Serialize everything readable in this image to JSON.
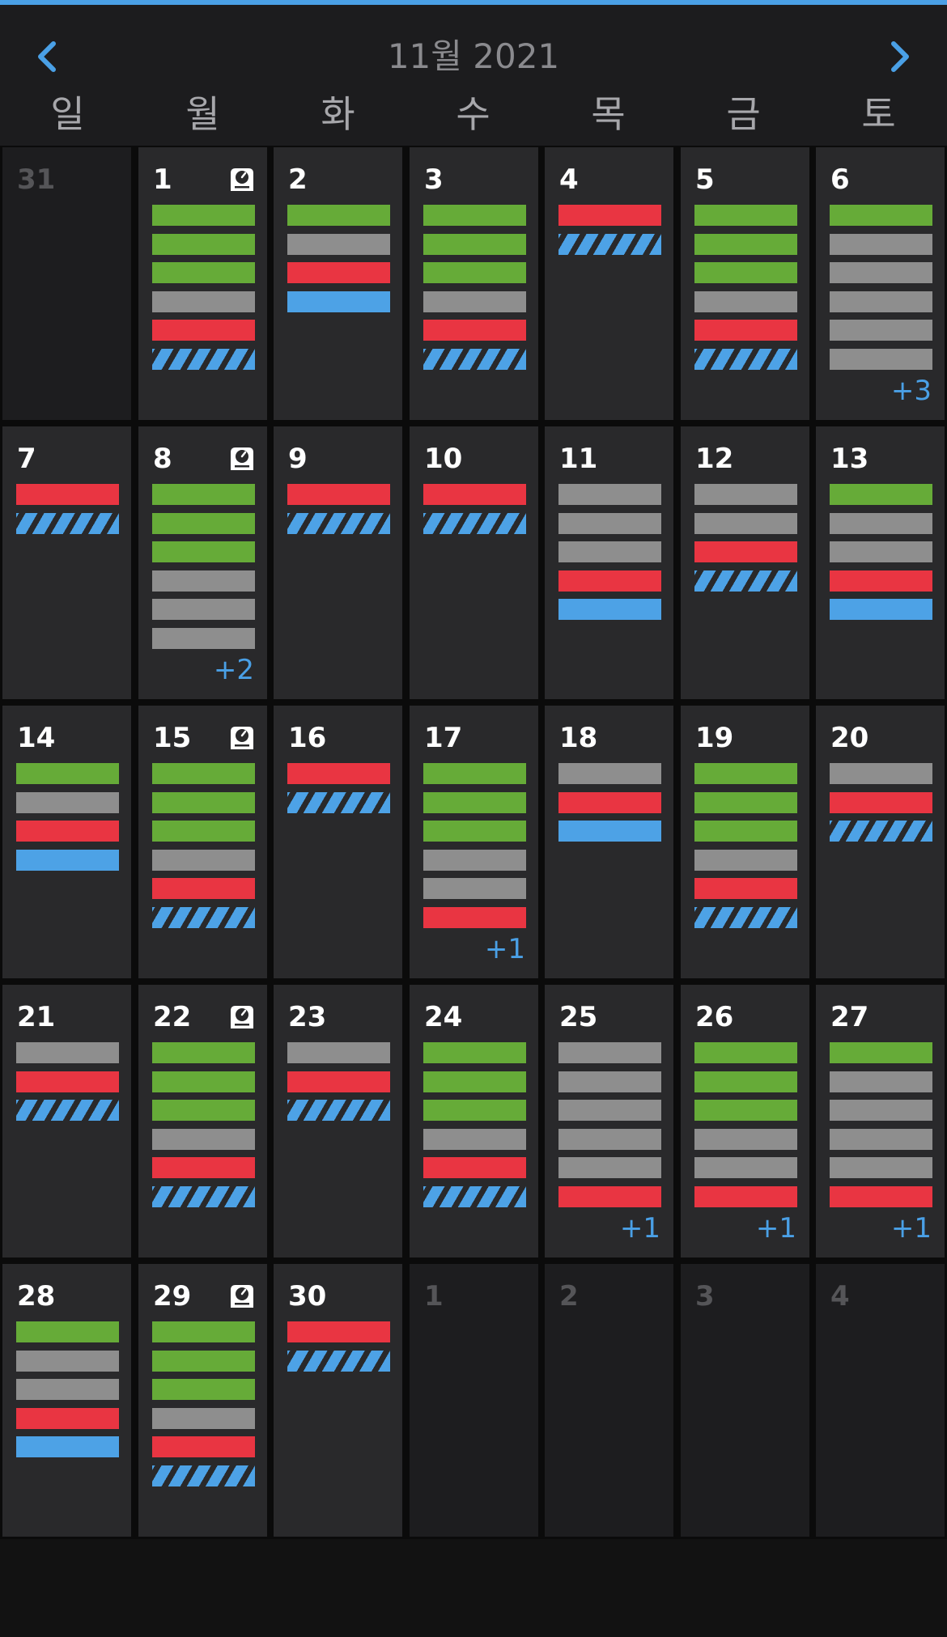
{
  "header": {
    "title": "11월 2021",
    "prev_icon": "chevron-left-icon",
    "next_icon": "chevron-right-icon",
    "accent_color": "#4aa0e6"
  },
  "weekdays": [
    "일",
    "월",
    "화",
    "수",
    "목",
    "금",
    "토"
  ],
  "bar_colors": {
    "green": "#66ab38",
    "gray": "#8e8e8e",
    "red": "#e93542",
    "blue": "#4da2e6",
    "striped": "blue-striped"
  },
  "weeks": [
    [
      {
        "day": "31",
        "current": false,
        "icon": null,
        "bars": [],
        "more": ""
      },
      {
        "day": "1",
        "current": true,
        "icon": "weight-scale-icon",
        "bars": [
          "green",
          "green",
          "green",
          "gray",
          "red",
          "striped"
        ],
        "more": ""
      },
      {
        "day": "2",
        "current": true,
        "icon": null,
        "bars": [
          "green",
          "gray",
          "red",
          "blue"
        ],
        "more": ""
      },
      {
        "day": "3",
        "current": true,
        "icon": null,
        "bars": [
          "green",
          "green",
          "green",
          "gray",
          "red",
          "striped"
        ],
        "more": ""
      },
      {
        "day": "4",
        "current": true,
        "icon": null,
        "bars": [
          "red",
          "striped"
        ],
        "more": ""
      },
      {
        "day": "5",
        "current": true,
        "icon": null,
        "bars": [
          "green",
          "green",
          "green",
          "gray",
          "red",
          "striped"
        ],
        "more": ""
      },
      {
        "day": "6",
        "current": true,
        "icon": null,
        "bars": [
          "green",
          "gray",
          "gray",
          "gray",
          "gray",
          "gray"
        ],
        "more": "+3"
      }
    ],
    [
      {
        "day": "7",
        "current": true,
        "icon": null,
        "bars": [
          "red",
          "striped"
        ],
        "more": ""
      },
      {
        "day": "8",
        "current": true,
        "icon": "weight-scale-icon",
        "bars": [
          "green",
          "green",
          "green",
          "gray",
          "gray",
          "gray"
        ],
        "more": "+2"
      },
      {
        "day": "9",
        "current": true,
        "icon": null,
        "bars": [
          "red",
          "striped"
        ],
        "more": ""
      },
      {
        "day": "10",
        "current": true,
        "icon": null,
        "bars": [
          "red",
          "striped"
        ],
        "more": ""
      },
      {
        "day": "11",
        "current": true,
        "icon": null,
        "bars": [
          "gray",
          "gray",
          "gray",
          "red",
          "blue"
        ],
        "more": ""
      },
      {
        "day": "12",
        "current": true,
        "icon": null,
        "bars": [
          "gray",
          "gray",
          "red",
          "striped"
        ],
        "more": ""
      },
      {
        "day": "13",
        "current": true,
        "icon": null,
        "bars": [
          "green",
          "gray",
          "gray",
          "red",
          "blue"
        ],
        "more": ""
      }
    ],
    [
      {
        "day": "14",
        "current": true,
        "icon": null,
        "bars": [
          "green",
          "gray",
          "red",
          "blue"
        ],
        "more": ""
      },
      {
        "day": "15",
        "current": true,
        "icon": "weight-scale-icon",
        "bars": [
          "green",
          "green",
          "green",
          "gray",
          "red",
          "striped"
        ],
        "more": ""
      },
      {
        "day": "16",
        "current": true,
        "icon": null,
        "bars": [
          "red",
          "striped"
        ],
        "more": ""
      },
      {
        "day": "17",
        "current": true,
        "icon": null,
        "bars": [
          "green",
          "green",
          "green",
          "gray",
          "gray",
          "red"
        ],
        "more": "+1"
      },
      {
        "day": "18",
        "current": true,
        "icon": null,
        "bars": [
          "gray",
          "red",
          "blue"
        ],
        "more": ""
      },
      {
        "day": "19",
        "current": true,
        "icon": null,
        "bars": [
          "green",
          "green",
          "green",
          "gray",
          "red",
          "striped"
        ],
        "more": ""
      },
      {
        "day": "20",
        "current": true,
        "icon": null,
        "bars": [
          "gray",
          "red",
          "striped"
        ],
        "more": ""
      }
    ],
    [
      {
        "day": "21",
        "current": true,
        "icon": null,
        "bars": [
          "gray",
          "red",
          "striped"
        ],
        "more": ""
      },
      {
        "day": "22",
        "current": true,
        "icon": "weight-scale-icon",
        "bars": [
          "green",
          "green",
          "green",
          "gray",
          "red",
          "striped"
        ],
        "more": ""
      },
      {
        "day": "23",
        "current": true,
        "icon": null,
        "bars": [
          "gray",
          "red",
          "striped"
        ],
        "more": ""
      },
      {
        "day": "24",
        "current": true,
        "icon": null,
        "bars": [
          "green",
          "green",
          "green",
          "gray",
          "red",
          "striped"
        ],
        "more": ""
      },
      {
        "day": "25",
        "current": true,
        "icon": null,
        "bars": [
          "gray",
          "gray",
          "gray",
          "gray",
          "gray",
          "red"
        ],
        "more": "+1"
      },
      {
        "day": "26",
        "current": true,
        "icon": null,
        "bars": [
          "green",
          "green",
          "green",
          "gray",
          "gray",
          "red"
        ],
        "more": "+1"
      },
      {
        "day": "27",
        "current": true,
        "icon": null,
        "bars": [
          "green",
          "gray",
          "gray",
          "gray",
          "gray",
          "red"
        ],
        "more": "+1"
      }
    ],
    [
      {
        "day": "28",
        "current": true,
        "icon": null,
        "bars": [
          "green",
          "gray",
          "gray",
          "red",
          "blue"
        ],
        "more": ""
      },
      {
        "day": "29",
        "current": true,
        "icon": "weight-scale-icon",
        "bars": [
          "green",
          "green",
          "green",
          "gray",
          "red",
          "striped"
        ],
        "more": ""
      },
      {
        "day": "30",
        "current": true,
        "icon": null,
        "bars": [
          "red",
          "striped"
        ],
        "more": ""
      },
      {
        "day": "1",
        "current": false,
        "icon": null,
        "bars": [],
        "more": ""
      },
      {
        "day": "2",
        "current": false,
        "icon": null,
        "bars": [],
        "more": ""
      },
      {
        "day": "3",
        "current": false,
        "icon": null,
        "bars": [],
        "more": ""
      },
      {
        "day": "4",
        "current": false,
        "icon": null,
        "bars": [],
        "more": ""
      }
    ]
  ]
}
